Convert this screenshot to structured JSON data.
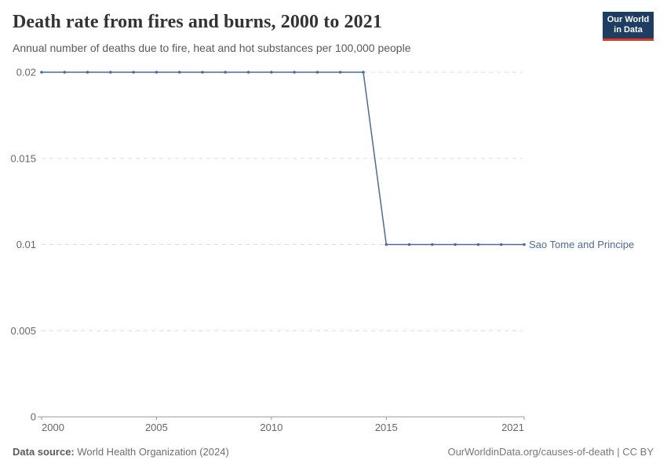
{
  "header": {
    "title": "Death rate from fires and burns, 2000 to 2021",
    "subtitle": "Annual number of deaths due to fire, heat and hot substances per 100,000 people"
  },
  "logo": {
    "line1": "Our World",
    "line2": "in Data",
    "bg_color": "#1d3d63",
    "bar_color": "#e0351f"
  },
  "chart_data": {
    "type": "line",
    "title": "Death rate from fires and burns, 2000 to 2021",
    "xlabel": "",
    "ylabel": "",
    "xlim": [
      2000,
      2021
    ],
    "ylim": [
      0,
      0.02
    ],
    "grid": "horizontal-dashed",
    "legend_position": "right-end-of-line",
    "x_ticks": [
      2000,
      2005,
      2010,
      2015,
      2021
    ],
    "x_tick_labels": [
      "2000",
      "2005",
      "2010",
      "2015",
      "2021"
    ],
    "y_ticks": [
      0,
      0.005,
      0.01,
      0.015,
      0.02
    ],
    "y_tick_labels": [
      "0",
      "0.005",
      "0.01",
      "0.015",
      "0.02"
    ],
    "grid_color": "#dcdcdc",
    "axis_color": "#999999",
    "tick_label_color": "#666666",
    "series": [
      {
        "name": "Sao Tome and Principe",
        "color": "#4c6a9c",
        "x": [
          2000,
          2001,
          2002,
          2003,
          2004,
          2005,
          2006,
          2007,
          2008,
          2009,
          2010,
          2011,
          2012,
          2013,
          2014,
          2015,
          2016,
          2017,
          2018,
          2019,
          2020,
          2021
        ],
        "values": [
          0.02,
          0.02,
          0.02,
          0.02,
          0.02,
          0.02,
          0.02,
          0.02,
          0.02,
          0.02,
          0.02,
          0.02,
          0.02,
          0.02,
          0.02,
          0.01,
          0.01,
          0.01,
          0.01,
          0.01,
          0.01,
          0.01
        ]
      }
    ]
  },
  "footer": {
    "source_label": "Data source:",
    "source_text": " World Health Organization (2024)",
    "credit": "OurWorldinData.org/causes-of-death | CC BY"
  }
}
